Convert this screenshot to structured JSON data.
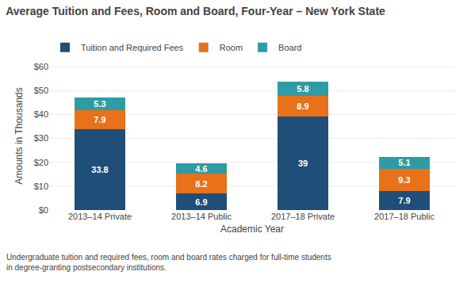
{
  "chart_data": {
    "type": "bar",
    "stacked": true,
    "title": "Average Tuition and Fees, Room and Board, Four-Year – New York State",
    "categories": [
      "2013–14 Private",
      "2013–14 Public",
      "2017–18 Private",
      "2017–18 Public"
    ],
    "series": [
      {
        "name": "Tuition and Required Fees",
        "color": "#1f4e79",
        "values": [
          33.8,
          6.9,
          39.0,
          7.9
        ]
      },
      {
        "name": "Room",
        "color": "#e8711a",
        "values": [
          7.9,
          8.2,
          8.9,
          9.3
        ]
      },
      {
        "name": "Board",
        "color": "#2e9ca4",
        "values": [
          5.3,
          4.6,
          5.8,
          5.1
        ]
      }
    ],
    "xlabel": "Academic Year",
    "ylabel": "Amounts in Thousands",
    "ylim": [
      0,
      62
    ],
    "yticks": [
      {
        "value": 0,
        "label": "$0"
      },
      {
        "value": 10,
        "label": "$10"
      },
      {
        "value": 20,
        "label": "$20"
      },
      {
        "value": 30,
        "label": "$30"
      },
      {
        "value": 40,
        "label": "$40"
      },
      {
        "value": 50,
        "label": "$50"
      },
      {
        "value": 60,
        "label": "$60"
      }
    ],
    "grid": true,
    "legend": "top",
    "data_labels": true,
    "footnote": "Undergraduate tuition and required fees, room and board rates charged for full-time students\nin degree-granting postsecondary institutions."
  }
}
